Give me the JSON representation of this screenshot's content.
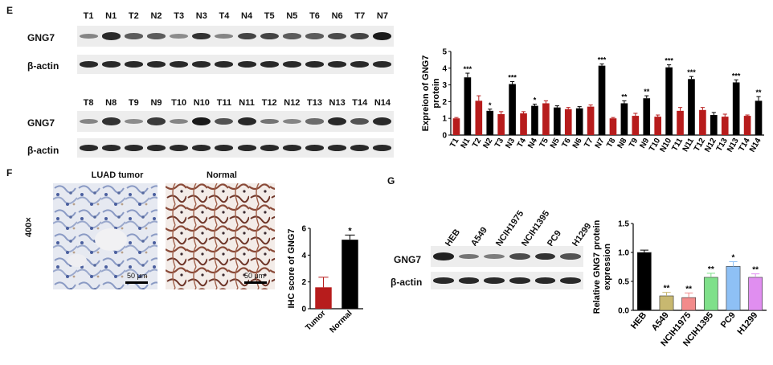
{
  "panels": {
    "e": "E",
    "f": "F",
    "g": "G"
  },
  "blot_e": {
    "top_lanes": [
      "T1",
      "N1",
      "T2",
      "N2",
      "T3",
      "N3",
      "T4",
      "N4",
      "T5",
      "N5",
      "T6",
      "N6",
      "T7",
      "N7"
    ],
    "bottom_lanes": [
      "T8",
      "N8",
      "T9",
      "N9",
      "T10",
      "N10",
      "T11",
      "N11",
      "T12",
      "N12",
      "T13",
      "N13",
      "T14",
      "N14"
    ],
    "gng7_label": "GNG7",
    "actin_label": "β-actin",
    "top_gng7_intensity": [
      0.3,
      0.85,
      0.55,
      0.55,
      0.25,
      0.8,
      0.3,
      0.7,
      0.7,
      0.55,
      0.55,
      0.65,
      0.7,
      0.95
    ],
    "bottom_gng7_intensity": [
      0.3,
      0.8,
      0.25,
      0.75,
      0.3,
      0.95,
      0.6,
      0.85,
      0.4,
      0.3,
      0.45,
      0.85,
      0.6,
      0.85
    ]
  },
  "ihc_f": {
    "tumor_title": "LUAD tumor",
    "normal_title": "Normal",
    "magnification": "400×",
    "scalebar_tumor": "50 μm",
    "scalebar_normal": "50 μm"
  },
  "blot_g": {
    "lanes": [
      "HEB",
      "A549",
      "NCIH1975",
      "NCIH1395",
      "PC9",
      "H1299"
    ],
    "gng7_label": "GNG7",
    "actin_label": "β-actin",
    "gng7_intensity": [
      0.9,
      0.4,
      0.35,
      0.65,
      0.8,
      0.6
    ]
  },
  "chart_data": [
    {
      "type": "bar",
      "panel": "E",
      "ylabel": "Expreion of GNG7 protein",
      "ylim": [
        0,
        5
      ],
      "yticks": [
        0,
        1,
        2,
        3,
        4,
        5
      ],
      "categories": [
        "T1",
        "N1",
        "T2",
        "N2",
        "T3",
        "N3",
        "T4",
        "N4",
        "T5",
        "N5",
        "T6",
        "N6",
        "T7",
        "N7",
        "T8",
        "N8",
        "T9",
        "N9",
        "T10",
        "N10",
        "T11",
        "N11",
        "T12",
        "N12",
        "T13",
        "N13",
        "T14",
        "N14"
      ],
      "values": [
        1.0,
        3.45,
        2.05,
        1.45,
        1.25,
        3.05,
        1.3,
        1.75,
        1.9,
        1.65,
        1.55,
        1.6,
        1.7,
        4.15,
        1.0,
        1.9,
        1.15,
        2.2,
        1.1,
        4.05,
        1.45,
        3.35,
        1.5,
        1.2,
        1.1,
        3.15,
        1.15,
        2.05
      ],
      "errors": [
        0.05,
        0.25,
        0.3,
        0.1,
        0.15,
        0.15,
        0.1,
        0.1,
        0.15,
        0.1,
        0.1,
        0.1,
        0.1,
        0.1,
        0.05,
        0.15,
        0.15,
        0.15,
        0.1,
        0.15,
        0.2,
        0.15,
        0.15,
        0.15,
        0.15,
        0.15,
        0.05,
        0.25
      ],
      "significance": [
        "",
        "***",
        "",
        "*",
        "",
        "***",
        "",
        "*",
        "",
        "",
        "",
        "",
        "",
        "***",
        "",
        "**",
        "",
        "**",
        "",
        "***",
        "",
        "***",
        "",
        "",
        "",
        "***",
        "",
        "**"
      ],
      "colors": {
        "T": "#b71c1c",
        "N": "#000000"
      }
    },
    {
      "type": "bar",
      "panel": "F",
      "ylabel": "IHC score of GNG7",
      "ylim": [
        0,
        6
      ],
      "yticks": [
        0,
        2,
        4,
        6
      ],
      "categories": [
        "Tumor",
        "Normal"
      ],
      "values": [
        1.6,
        5.15
      ],
      "errors": [
        0.75,
        0.35
      ],
      "significance": [
        "",
        "*"
      ],
      "colors": [
        "#b71c1c",
        "#000000"
      ]
    },
    {
      "type": "bar",
      "panel": "G",
      "ylabel": "Relative GNG7 protein expression",
      "ylim": [
        0,
        1.5
      ],
      "yticks": [
        0.0,
        0.5,
        1.0,
        1.5
      ],
      "categories": [
        "HEB",
        "A549",
        "NCIH1975",
        "NCIH1395",
        "PC9",
        "H1299"
      ],
      "values": [
        1.0,
        0.25,
        0.22,
        0.57,
        0.76,
        0.57
      ],
      "errors": [
        0.04,
        0.06,
        0.08,
        0.07,
        0.08,
        0.06
      ],
      "significance": [
        "",
        "**",
        "**",
        "**",
        "*",
        "**"
      ],
      "colors": [
        "#000000",
        "#c8b870",
        "#f28b8b",
        "#7fe08a",
        "#8ec0f5",
        "#e08ef0"
      ]
    }
  ]
}
